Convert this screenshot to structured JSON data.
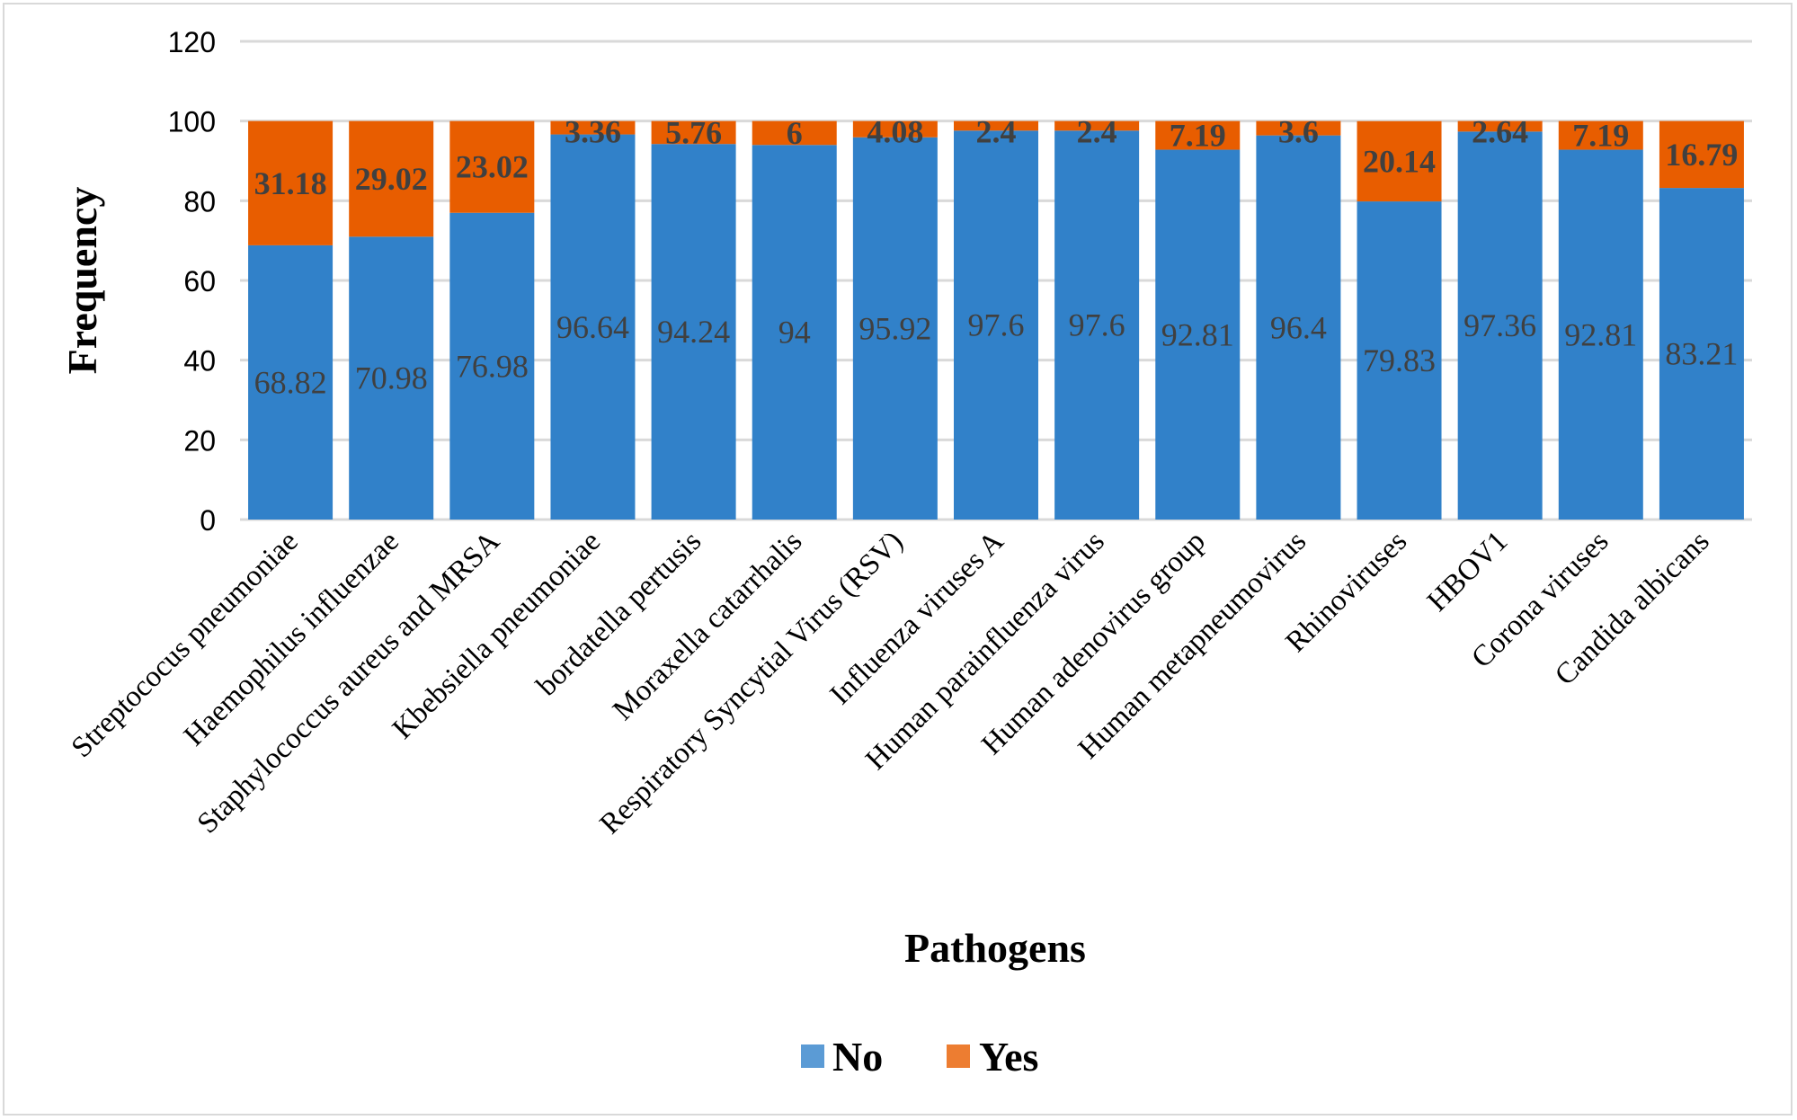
{
  "chart_data": {
    "type": "bar",
    "stacked": true,
    "title": "",
    "xlabel": "Pathogens",
    "ylabel": "Frequency",
    "ylim": [
      0,
      120
    ],
    "yticks": [
      0,
      20,
      40,
      60,
      80,
      100,
      120
    ],
    "grid": true,
    "legend_position": "bottom",
    "categories": [
      "Streptococus pneumoniae",
      "Haemophilus influenzae",
      "Staphylococcus aureus and MRSA",
      "Kbebsiella pneumoniae",
      "bordatella pertusis",
      "Moraxella catarrhalis",
      "Respiratory Syncytial Virus (RSV)",
      "Influenza viruses A",
      "Human parainfluenza virus",
      "Human adenovirus group",
      "Human metapneumovirus",
      "Rhinoviruses",
      "HBOV1",
      "Corona viruses",
      "Candida albicans"
    ],
    "series": [
      {
        "name": "No",
        "color": "#3181c9",
        "values": [
          68.82,
          70.98,
          76.98,
          96.64,
          94.24,
          94,
          95.92,
          97.6,
          97.6,
          92.81,
          96.4,
          79.83,
          97.36,
          92.81,
          83.21
        ],
        "labels": [
          "68.82",
          "70.98",
          "76.98",
          "96.64",
          "94.24",
          "94",
          "95.92",
          "97.6",
          "97.6",
          "92.81",
          "96.4",
          "79.83",
          "97.36",
          "92.81",
          "83.21"
        ]
      },
      {
        "name": "Yes",
        "color": "#e85d00",
        "values": [
          31.18,
          29.02,
          23.02,
          3.36,
          5.76,
          6,
          4.08,
          2.4,
          2.4,
          7.19,
          3.6,
          20.14,
          2.64,
          7.19,
          16.79
        ],
        "labels": [
          "31.18",
          "29.02",
          "23.02",
          "3.36",
          "5.76",
          "6",
          "4.08",
          "2.4",
          "2.4",
          "7.19",
          "3.6",
          "20.14",
          "2.64",
          "7.19",
          "16.79"
        ]
      }
    ],
    "legend_colors": {
      "No": "#5b9bd5",
      "Yes": "#ed7d31"
    }
  }
}
